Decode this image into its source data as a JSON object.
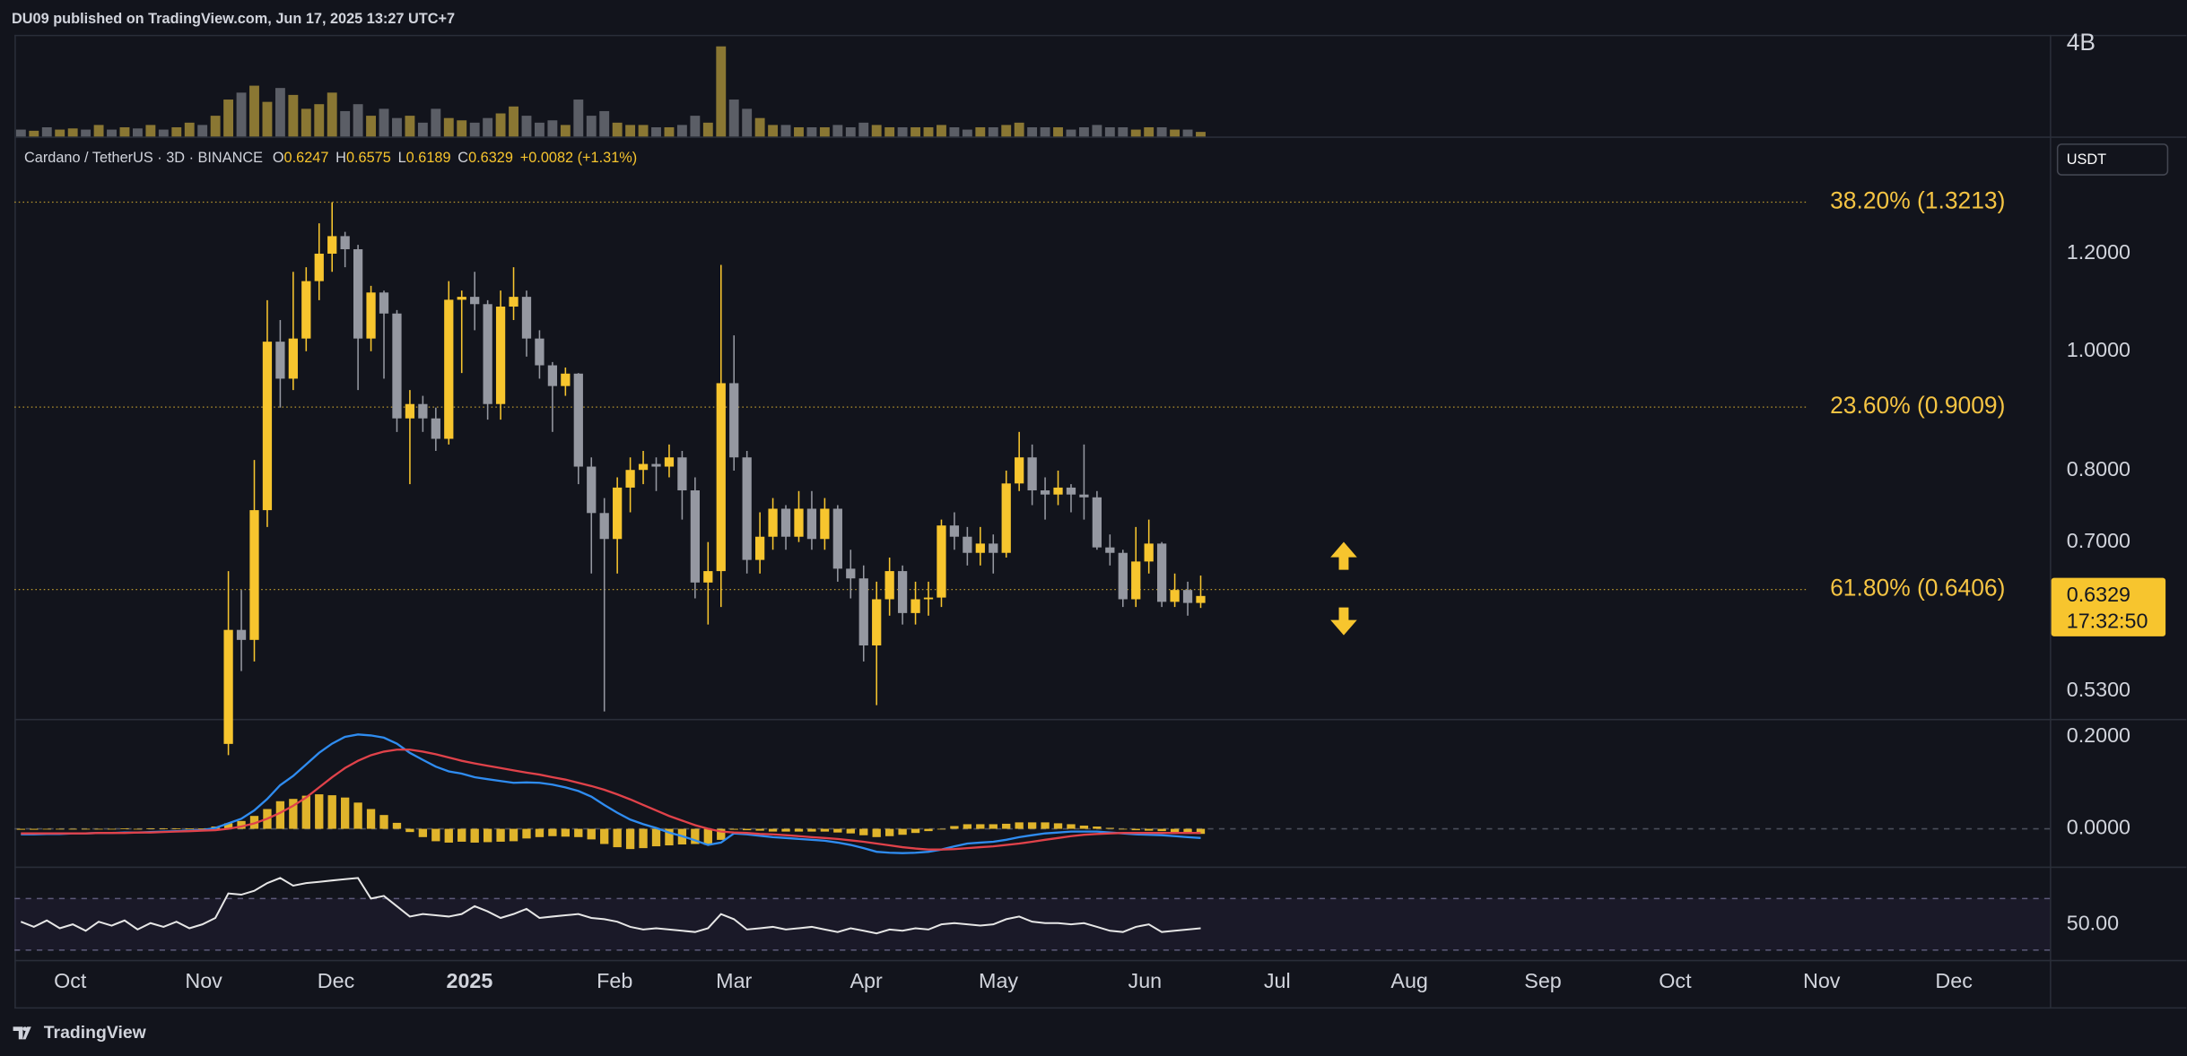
{
  "header": {
    "publisher": "DU09 published on TradingView.com, Jun 17, 2025 13:27 UTC+7",
    "brand": "TradingView"
  },
  "x_axis": {
    "xlim": [
      -0.5,
      156.5
    ],
    "xticks": [
      {
        "value": 3.8,
        "label": "Oct"
      },
      {
        "value": 14.1,
        "label": "Nov"
      },
      {
        "value": 24.3,
        "label": "Dec"
      },
      {
        "value": 34.6,
        "label": "2025"
      },
      {
        "value": 45.8,
        "label": "Feb"
      },
      {
        "value": 55.0,
        "label": "Mar"
      },
      {
        "value": 65.2,
        "label": "Apr"
      },
      {
        "value": 75.4,
        "label": "May"
      },
      {
        "value": 86.7,
        "label": "Jun"
      },
      {
        "value": 96.9,
        "label": "Jul"
      },
      {
        "value": 107.1,
        "label": "Aug"
      },
      {
        "value": 117.4,
        "label": "Sep"
      },
      {
        "value": 127.6,
        "label": "Oct"
      },
      {
        "value": 138.9,
        "label": "Nov"
      },
      {
        "value": 149.1,
        "label": "Dec"
      }
    ]
  },
  "chart_data": [
    {
      "type": "candlestick",
      "title": "Cardano / TetherUS · 3D · BINANCE",
      "ohlc_labels": [
        "O",
        "H",
        "L",
        "C"
      ],
      "change": "+0.0082 (+1.31%)",
      "open": [
        null,
        null,
        null,
        null,
        null,
        null,
        null,
        null,
        null,
        null,
        null,
        null,
        null,
        null,
        null,
        null,
        0.48,
        0.594,
        0.583,
        0.743,
        1.018,
        0.95,
        1.024,
        1.14,
        1.2,
        1.24,
        1.21,
        1.024,
        1.116,
        1.073,
        0.882,
        0.906,
        0.882,
        0.849,
        1.101,
        1.107,
        1.092,
        0.906,
        1.087,
        1.107,
        1.024,
        0.974,
        0.937,
        0.959,
        0.806,
        0.739,
        0.704,
        0.775,
        0.801,
        0.81,
        0.806,
        0.82,
        0.771,
        0.649,
        0.663,
        0.942,
        0.82,
        0.677,
        0.707,
        0.745,
        0.707,
        0.745,
        0.704,
        0.745,
        0.666,
        0.654,
        0.577,
        0.629,
        0.663,
        0.613,
        0.629,
        0.631,
        0.722,
        0.707,
        0.686,
        0.698,
        0.686,
        0.781,
        0.82,
        0.771,
        0.765,
        0.775,
        0.765,
        0.761,
        0.693,
        0.686,
        0.629,
        0.675,
        0.698,
        0.626,
        0.64,
        0.6247
      ],
      "high": [
        null,
        null,
        null,
        null,
        null,
        null,
        null,
        null,
        null,
        null,
        null,
        null,
        null,
        null,
        null,
        null,
        0.663,
        0.64,
        0.816,
        1.1,
        1.06,
        1.16,
        1.17,
        1.27,
        1.321,
        1.25,
        1.22,
        1.13,
        1.12,
        1.08,
        0.93,
        0.92,
        0.9,
        1.14,
        1.12,
        1.16,
        1.1,
        1.12,
        1.17,
        1.12,
        1.04,
        0.98,
        0.97,
        0.96,
        0.82,
        0.76,
        0.79,
        0.82,
        0.83,
        0.82,
        0.84,
        0.83,
        0.79,
        0.7,
        1.175,
        1.03,
        0.83,
        0.74,
        0.76,
        0.75,
        0.77,
        0.77,
        0.76,
        0.75,
        0.69,
        0.67,
        0.65,
        0.68,
        0.67,
        0.65,
        0.65,
        0.73,
        0.74,
        0.72,
        0.72,
        0.71,
        0.8,
        0.86,
        0.84,
        0.79,
        0.8,
        0.78,
        0.84,
        0.77,
        0.71,
        0.69,
        0.72,
        0.73,
        0.7,
        0.66,
        0.65,
        0.6575
      ],
      "low": [
        null,
        null,
        null,
        null,
        null,
        null,
        null,
        null,
        null,
        null,
        null,
        null,
        null,
        null,
        null,
        null,
        0.47,
        0.55,
        0.56,
        0.72,
        0.9,
        0.93,
        1.0,
        1.1,
        1.16,
        1.17,
        0.93,
        1.0,
        0.95,
        0.86,
        0.78,
        0.86,
        0.83,
        0.84,
        0.96,
        1.04,
        0.88,
        0.88,
        1.06,
        0.99,
        0.95,
        0.86,
        0.92,
        0.78,
        0.66,
        0.51,
        0.66,
        0.74,
        0.78,
        0.77,
        0.79,
        0.73,
        0.63,
        0.6,
        0.62,
        0.8,
        0.66,
        0.66,
        0.69,
        0.69,
        0.7,
        0.69,
        0.69,
        0.65,
        0.63,
        0.56,
        0.516,
        0.61,
        0.6,
        0.6,
        0.61,
        0.62,
        0.69,
        0.67,
        0.67,
        0.66,
        0.68,
        0.77,
        0.75,
        0.73,
        0.75,
        0.74,
        0.73,
        0.69,
        0.67,
        0.62,
        0.62,
        0.66,
        0.62,
        0.62,
        0.61,
        0.6189
      ],
      "close": [
        null,
        null,
        null,
        null,
        null,
        null,
        null,
        null,
        null,
        null,
        null,
        null,
        null,
        null,
        null,
        null,
        0.594,
        0.583,
        0.743,
        1.018,
        0.95,
        1.024,
        1.14,
        1.2,
        1.24,
        1.21,
        1.024,
        1.116,
        1.073,
        0.882,
        0.906,
        0.882,
        0.849,
        1.101,
        1.107,
        1.092,
        0.906,
        1.087,
        1.107,
        1.024,
        0.974,
        0.937,
        0.959,
        0.806,
        0.739,
        0.704,
        0.775,
        0.801,
        0.81,
        0.806,
        0.82,
        0.771,
        0.649,
        0.663,
        0.942,
        0.82,
        0.677,
        0.707,
        0.745,
        0.707,
        0.745,
        0.704,
        0.745,
        0.666,
        0.654,
        0.577,
        0.629,
        0.663,
        0.613,
        0.629,
        0.631,
        0.722,
        0.707,
        0.686,
        0.698,
        0.686,
        0.781,
        0.82,
        0.771,
        0.765,
        0.775,
        0.765,
        0.761,
        0.693,
        0.686,
        0.629,
        0.675,
        0.698,
        0.626,
        0.64,
        0.6247,
        0.6329
      ],
      "up_color": "#f7c52e",
      "down_color": "#9598a1",
      "log_scale": true,
      "ylim": [
        0.503,
        1.486
      ],
      "yticks": [
        {
          "value": 1.2,
          "label": "1.2000"
        },
        {
          "value": 1.0,
          "label": "1.0000"
        },
        {
          "value": 0.8,
          "label": "0.8000"
        },
        {
          "value": 0.7,
          "label": "0.7000"
        },
        {
          "value": 0.53,
          "label": "0.5300"
        }
      ],
      "currency": "USDT",
      "countdown": "17:32:50",
      "fib_levels": [
        {
          "value": 1.3213,
          "label": "38.20% (1.3213)"
        },
        {
          "value": 0.9009,
          "label": "23.60% (0.9009)"
        },
        {
          "value": 0.6406,
          "label": "61.80% (0.6406)"
        }
      ]
    },
    {
      "type": "bar",
      "values": [
        300000000,
        250000000,
        400000000,
        300000000,
        350000000,
        300000000,
        500000000,
        300000000,
        400000000,
        350000000,
        500000000,
        300000000,
        400000000,
        600000000,
        500000000,
        900000000,
        1600000000,
        1900000000,
        2200000000,
        1500000000,
        2100000000,
        1800000000,
        1200000000,
        1400000000,
        1900000000,
        1100000000,
        1400000000,
        900000000,
        1200000000,
        800000000,
        900000000,
        600000000,
        1200000000,
        800000000,
        700000000,
        600000000,
        800000000,
        1000000000,
        1300000000,
        900000000,
        600000000,
        700000000,
        500000000,
        1600000000,
        900000000,
        1100000000,
        600000000,
        500000000,
        500000000,
        400000000,
        400000000,
        500000000,
        900000000,
        600000000,
        3900000000,
        1600000000,
        1200000000,
        800000000,
        500000000,
        500000000,
        400000000,
        400000000,
        400000000,
        500000000,
        400000000,
        600000000,
        500000000,
        400000000,
        400000000,
        400000000,
        400000000,
        500000000,
        400000000,
        300000000,
        400000000,
        400000000,
        500000000,
        600000000,
        400000000,
        400000000,
        400000000,
        300000000,
        400000000,
        500000000,
        400000000,
        400000000,
        300000000,
        400000000,
        400000000,
        300000000,
        300000000,
        200000000
      ],
      "colors": [
        "#5b5e66",
        "#8a7733",
        "#5b5e66",
        "#8a7733",
        "#8a7733",
        "#5b5e66",
        "#8a7733",
        "#5b5e66",
        "#8a7733",
        "#5b5e66",
        "#8a7733",
        "#5b5e66",
        "#8a7733",
        "#8a7733",
        "#5b5e66",
        "#8a7733",
        "#8a7733",
        "#5b5e66",
        "#8a7733",
        "#8a7733",
        "#5b5e66",
        "#8a7733",
        "#8a7733",
        "#8a7733",
        "#8a7733",
        "#5b5e66",
        "#5b5e66",
        "#8a7733",
        "#5b5e66",
        "#5b5e66",
        "#8a7733",
        "#5b5e66",
        "#5b5e66",
        "#8a7733",
        "#8a7733",
        "#5b5e66",
        "#5b5e66",
        "#8a7733",
        "#8a7733",
        "#5b5e66",
        "#5b5e66",
        "#5b5e66",
        "#8a7733",
        "#5b5e66",
        "#5b5e66",
        "#5b5e66",
        "#8a7733",
        "#8a7733",
        "#8a7733",
        "#5b5e66",
        "#8a7733",
        "#5b5e66",
        "#5b5e66",
        "#8a7733",
        "#8a7733",
        "#5b5e66",
        "#5b5e66",
        "#8a7733",
        "#8a7733",
        "#5b5e66",
        "#8a7733",
        "#5b5e66",
        "#8a7733",
        "#5b5e66",
        "#5b5e66",
        "#5b5e66",
        "#8a7733",
        "#8a7733",
        "#5b5e66",
        "#8a7733",
        "#8a7733",
        "#8a7733",
        "#5b5e66",
        "#5b5e66",
        "#8a7733",
        "#5b5e66",
        "#8a7733",
        "#8a7733",
        "#5b5e66",
        "#5b5e66",
        "#8a7733",
        "#5b5e66",
        "#5b5e66",
        "#5b5e66",
        "#5b5e66",
        "#5b5e66",
        "#8a7733",
        "#8a7733",
        "#5b5e66",
        "#8a7733",
        "#5b5e66",
        "#8a7733"
      ],
      "ylim": [
        0,
        4400000000
      ],
      "yticks": [
        {
          "value": 4000000000,
          "label": "4B"
        }
      ]
    },
    {
      "type": "macd",
      "ylim": [
        -0.082,
        0.236
      ],
      "yticks": [
        {
          "value": 0.2,
          "label": "0.2000"
        },
        {
          "value": 0,
          "label": "0.0000"
        }
      ],
      "series": [
        {
          "color": "#2f8cf0",
          "style": "line",
          "values": [
            -0.012,
            -0.012,
            -0.011,
            -0.011,
            -0.01,
            -0.01,
            -0.009,
            -0.009,
            -0.008,
            -0.008,
            -0.007,
            -0.006,
            -0.005,
            -0.004,
            -0.003,
            0.002,
            0.012,
            0.022,
            0.04,
            0.065,
            0.095,
            0.115,
            0.14,
            0.165,
            0.185,
            0.2,
            0.205,
            0.203,
            0.198,
            0.185,
            0.165,
            0.15,
            0.135,
            0.125,
            0.12,
            0.112,
            0.108,
            0.104,
            0.1,
            0.101,
            0.1,
            0.096,
            0.09,
            0.082,
            0.07,
            0.052,
            0.035,
            0.02,
            0.01,
            0.002,
            -0.008,
            -0.016,
            -0.025,
            -0.035,
            -0.03,
            -0.01,
            -0.012,
            -0.015,
            -0.018,
            -0.02,
            -0.022,
            -0.024,
            -0.026,
            -0.03,
            -0.035,
            -0.042,
            -0.05,
            -0.052,
            -0.053,
            -0.052,
            -0.05,
            -0.045,
            -0.038,
            -0.032,
            -0.03,
            -0.028,
            -0.024,
            -0.018,
            -0.014,
            -0.01,
            -0.008,
            -0.006,
            -0.006,
            -0.006,
            -0.008,
            -0.01,
            -0.012,
            -0.013,
            -0.014,
            -0.016,
            -0.018,
            -0.02
          ]
        },
        {
          "color": "#e0424a",
          "style": "line",
          "values": [
            -0.01,
            -0.01,
            -0.01,
            -0.01,
            -0.01,
            -0.01,
            -0.009,
            -0.009,
            -0.009,
            -0.008,
            -0.008,
            -0.007,
            -0.006,
            -0.005,
            -0.004,
            -0.003,
            0.0,
            0.005,
            0.012,
            0.022,
            0.035,
            0.05,
            0.068,
            0.09,
            0.112,
            0.132,
            0.148,
            0.16,
            0.168,
            0.172,
            0.172,
            0.168,
            0.162,
            0.155,
            0.148,
            0.142,
            0.137,
            0.132,
            0.127,
            0.122,
            0.118,
            0.112,
            0.107,
            0.1,
            0.093,
            0.085,
            0.075,
            0.064,
            0.052,
            0.04,
            0.028,
            0.018,
            0.008,
            0.0,
            -0.006,
            -0.008,
            -0.009,
            -0.011,
            -0.012,
            -0.014,
            -0.016,
            -0.018,
            -0.02,
            -0.022,
            -0.025,
            -0.028,
            -0.032,
            -0.036,
            -0.04,
            -0.043,
            -0.045,
            -0.045,
            -0.044,
            -0.042,
            -0.04,
            -0.038,
            -0.035,
            -0.032,
            -0.028,
            -0.024,
            -0.02,
            -0.016,
            -0.013,
            -0.011,
            -0.01,
            -0.009,
            -0.009,
            -0.009,
            -0.009,
            -0.009,
            -0.009,
            -0.009
          ]
        },
        {
          "color": "#f7c52e",
          "style": "bar",
          "values": [
            -0.002,
            -0.002,
            -0.001,
            -0.001,
            0.0,
            0.0,
            0.0,
            0.0,
            0.001,
            0.0,
            0.001,
            0.001,
            0.001,
            0.001,
            0.001,
            0.005,
            0.012,
            0.017,
            0.028,
            0.043,
            0.06,
            0.065,
            0.072,
            0.075,
            0.073,
            0.068,
            0.057,
            0.043,
            0.03,
            0.013,
            -0.007,
            -0.018,
            -0.027,
            -0.03,
            -0.028,
            -0.03,
            -0.029,
            -0.028,
            -0.027,
            -0.021,
            -0.018,
            -0.016,
            -0.017,
            -0.018,
            -0.023,
            -0.033,
            -0.04,
            -0.044,
            -0.042,
            -0.038,
            -0.036,
            -0.034,
            -0.033,
            -0.035,
            -0.024,
            -0.002,
            -0.003,
            -0.004,
            -0.006,
            -0.006,
            -0.006,
            -0.006,
            -0.006,
            -0.008,
            -0.01,
            -0.014,
            -0.018,
            -0.016,
            -0.013,
            -0.009,
            -0.005,
            0.0,
            0.006,
            0.01,
            0.01,
            0.01,
            0.011,
            0.014,
            0.014,
            0.014,
            0.012,
            0.01,
            0.007,
            0.005,
            0.002,
            -0.001,
            -0.003,
            -0.004,
            -0.005,
            -0.007,
            -0.009,
            -0.011
          ]
        }
      ]
    },
    {
      "type": "line",
      "color": "#e6e6e6",
      "ylim": [
        23.5,
        92.7
      ],
      "yticks": [
        {
          "value": 50,
          "label": "50.00"
        }
      ],
      "bands": [
        30,
        70
      ],
      "values": [
        52,
        48,
        53,
        47,
        50,
        45,
        52,
        49,
        53,
        46,
        51,
        48,
        52,
        47,
        50,
        55,
        74,
        73,
        76,
        82,
        86,
        80,
        82,
        83,
        84,
        85,
        86,
        70,
        72,
        64,
        56,
        58,
        57,
        56,
        58,
        64,
        60,
        55,
        58,
        62,
        55,
        56,
        57,
        58,
        55,
        54,
        52,
        48,
        46,
        47,
        46,
        45,
        44,
        47,
        58,
        54,
        46,
        47,
        48,
        46,
        47,
        48,
        46,
        44,
        47,
        45,
        43,
        46,
        45,
        47,
        46,
        50,
        51,
        50,
        49,
        50,
        54,
        56,
        52,
        51,
        51,
        50,
        51,
        48,
        45,
        44,
        48,
        50,
        44,
        45,
        46,
        47
      ]
    }
  ]
}
